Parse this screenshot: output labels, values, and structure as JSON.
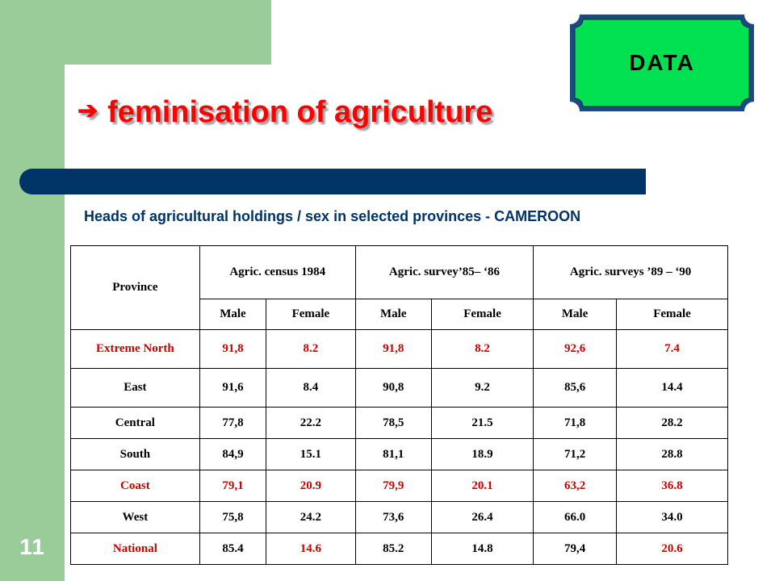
{
  "slide": {
    "number": "11",
    "title_arrow": "➔",
    "title": "feminisation of agriculture",
    "badge": "DATA",
    "subtitle": "Heads of agricultural holdings / sex in selected provinces - CAMEROON"
  },
  "colors": {
    "background": "#ffffff",
    "sidebar_green": "#99cc99",
    "title_red": "#ff0000",
    "navy": "#003366",
    "badge_green": "#00e050",
    "badge_border": "#1a4a80",
    "highlight_red": "#cc0000"
  },
  "table": {
    "province_header": "Province",
    "group_headers": [
      "Agric. census 1984",
      "Agric. survey’85– ‘86",
      "Agric. surveys ’89 – ‘90"
    ],
    "sub_headers": [
      "Male",
      "Female",
      "Male",
      "Female",
      "Male",
      "Female"
    ],
    "rows": [
      {
        "province": "Extreme North",
        "highlight": true,
        "values": [
          "91,8",
          "8.2",
          "91,8",
          "8.2",
          "92,6",
          "7.4"
        ]
      },
      {
        "province": "East",
        "highlight": false,
        "values": [
          "91,6",
          "8.4",
          "90,8",
          "9.2",
          "85,6",
          "14.4"
        ]
      },
      {
        "province": "Central",
        "highlight": false,
        "values": [
          "77,8",
          "22.2",
          "78,5",
          "21.5",
          "71,8",
          "28.2"
        ]
      },
      {
        "province": "South",
        "highlight": false,
        "values": [
          "84,9",
          "15.1",
          "81,1",
          "18.9",
          "71,2",
          "28.8"
        ]
      },
      {
        "province": "Coast",
        "highlight": true,
        "values": [
          "79,1",
          "20.9",
          "79,9",
          "20.1",
          "63,2",
          "36.8"
        ]
      },
      {
        "province": "West",
        "highlight": false,
        "values": [
          "75,8",
          "24.2",
          "73,6",
          "26.4",
          "66.0",
          "34.0"
        ]
      },
      {
        "province": "National",
        "highlight": "mixed",
        "values": [
          "85.4",
          "14.6",
          "85.2",
          "14.8",
          "79,4",
          "20.6"
        ]
      }
    ]
  }
}
